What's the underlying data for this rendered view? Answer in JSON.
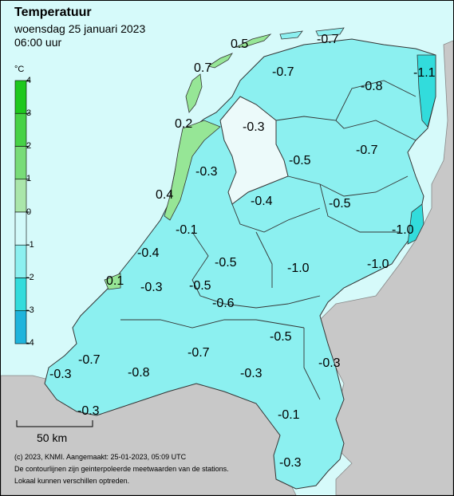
{
  "header": {
    "title": "Temperatuur",
    "date": "woensdag 25 januari 2023",
    "time": "06:00 uur"
  },
  "legend": {
    "unit": "°C",
    "ticks": [
      "4",
      "3",
      "2",
      "1",
      "0",
      "-1",
      "-2",
      "-3",
      "-4"
    ],
    "bands": [
      {
        "range": [
          3,
          4
        ],
        "color": "#1ec81e"
      },
      {
        "range": [
          2,
          3
        ],
        "color": "#46d246"
      },
      {
        "range": [
          1,
          2
        ],
        "color": "#78dc78"
      },
      {
        "range": [
          0,
          1
        ],
        "color": "#aae6aa"
      },
      {
        "range": [
          -1,
          0
        ],
        "color": "#d2fafa"
      },
      {
        "range": [
          -2,
          -1
        ],
        "color": "#8cf0f0"
      },
      {
        "range": [
          -3,
          -2
        ],
        "color": "#32dcdc"
      },
      {
        "range": [
          -4,
          -3
        ],
        "color": "#1eb4dc"
      }
    ]
  },
  "colors": {
    "sea": "#d6fafa",
    "land_neighbour": "#c8c8c8",
    "land_main": "#8cf0f0",
    "lake": "#ecfafa",
    "mild": "#96e696"
  },
  "values": [
    "0.5",
    "-0.7",
    "0.7",
    "-0.7",
    "-1.1",
    "-0.8",
    "0.2",
    "-0.3",
    "-0.7",
    "-0.5",
    "-0.3",
    "0.4",
    "-0.4",
    "-0.5",
    "-1.0",
    "-0.1",
    "-0.4",
    "-0.5",
    "-1.0",
    "-1.0",
    "0.1",
    "-0.3",
    "-0.5",
    "-0.6",
    "-0.5",
    "-0.7",
    "-0.7",
    "-0.3",
    "-0.8",
    "-0.3",
    "-0.3",
    "-0.3",
    "-0.1",
    "-0.3"
  ],
  "scale_bar": "50 km",
  "credits": [
    "(c) 2023, KNMI. Aangemaakt: 25-01-2023, 05:09 UTC",
    "De contourlijnen zijn geinterpoleerde meetwaarden van de stations.",
    "Lokaal kunnen verschillen optreden."
  ]
}
